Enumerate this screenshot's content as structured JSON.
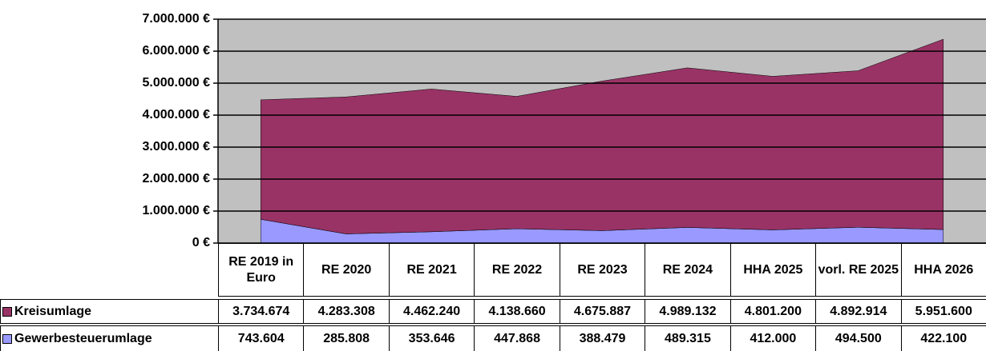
{
  "chart_data": {
    "type": "area",
    "categories": [
      "RE 2019 in Euro",
      "RE 2020",
      "RE 2021",
      "RE 2022",
      "RE 2023",
      "RE 2024",
      "HHA 2025",
      "vorl. RE 2025",
      "HHA 2026"
    ],
    "series": [
      {
        "name": "Gewerbesteuerumlage",
        "color": "#9999ff",
        "values": [
          743604,
          285808,
          353646,
          447868,
          388479,
          489315,
          412000,
          494500,
          422100
        ],
        "value_labels": [
          "743.604",
          "285.808",
          "353.646",
          "447.868",
          "388.479",
          "489.315",
          "412.000",
          "494.500",
          "422.100"
        ]
      },
      {
        "name": "Kreisumlage",
        "color": "#993366",
        "values": [
          3734674,
          4283308,
          4462240,
          4138660,
          4675887,
          4989132,
          4801200,
          4892914,
          5951600
        ],
        "value_labels": [
          "3.734.674",
          "4.283.308",
          "4.462.240",
          "4.138.660",
          "4.675.887",
          "4.989.132",
          "4.801.200",
          "4.892.914",
          "5.951.600"
        ]
      }
    ],
    "stacked": true,
    "ylim": [
      0,
      7000000
    ],
    "yticks": [
      {
        "value": 0,
        "label": "0 €"
      },
      {
        "value": 1000000,
        "label": "1.000.000 €"
      },
      {
        "value": 2000000,
        "label": "2.000.000 €"
      },
      {
        "value": 3000000,
        "label": "3.000.000 €"
      },
      {
        "value": 4000000,
        "label": "4.000.000 €"
      },
      {
        "value": 5000000,
        "label": "5.000.000 €"
      },
      {
        "value": 6000000,
        "label": "6.000.000 €"
      },
      {
        "value": 7000000,
        "label": "7.000.000 €"
      }
    ],
    "grid": true,
    "plot_background": "#c0c0c0"
  }
}
